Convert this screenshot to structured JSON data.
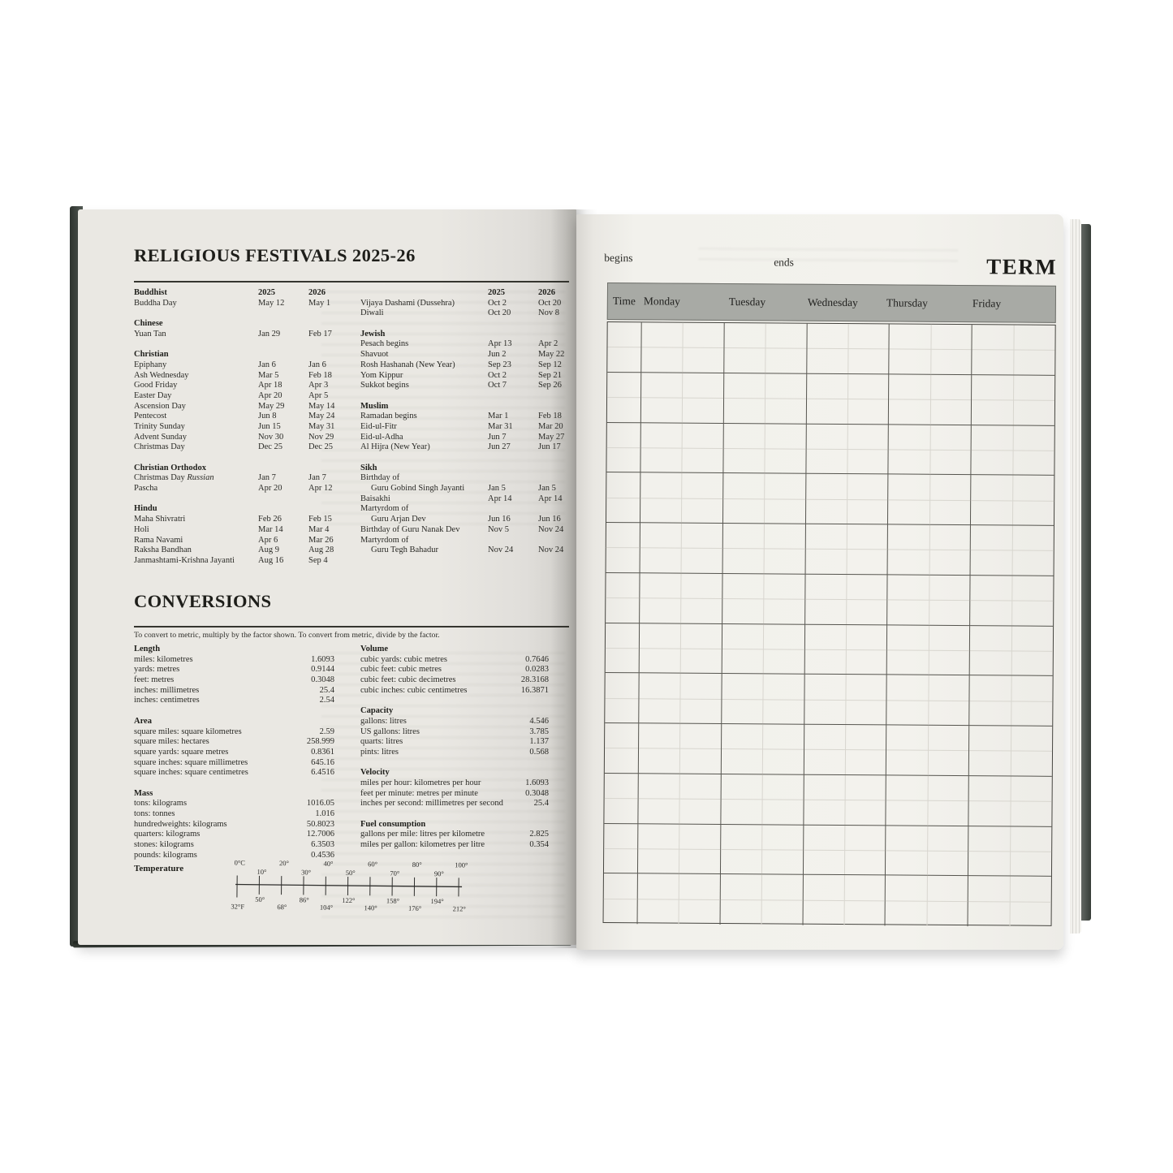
{
  "left_page": {
    "title": "RELIGIOUS FESTIVALS 2025-26",
    "festivals": {
      "left_rows": [
        {
          "type": "head",
          "name": "Buddhist",
          "d1": "2025",
          "d2": "2026"
        },
        {
          "type": "row",
          "name": "Buddha Day",
          "d1": "May 12",
          "d2": "May 1"
        },
        {
          "type": "gap"
        },
        {
          "type": "head",
          "name": "Chinese"
        },
        {
          "type": "row",
          "name": "Yuan Tan",
          "d1": "Jan 29",
          "d2": "Feb 17"
        },
        {
          "type": "gap"
        },
        {
          "type": "head",
          "name": "Christian"
        },
        {
          "type": "row",
          "name": "Epiphany",
          "d1": "Jan 6",
          "d2": "Jan 6"
        },
        {
          "type": "row",
          "name": "Ash Wednesday",
          "d1": "Mar 5",
          "d2": "Feb 18"
        },
        {
          "type": "row",
          "name": "Good Friday",
          "d1": "Apr 18",
          "d2": "Apr 3"
        },
        {
          "type": "row",
          "name": "Easter Day",
          "d1": "Apr 20",
          "d2": "Apr 5"
        },
        {
          "type": "row",
          "name": "Ascension Day",
          "d1": "May 29",
          "d2": "May 14"
        },
        {
          "type": "row",
          "name": "Pentecost",
          "d1": "Jun 8",
          "d2": "May 24"
        },
        {
          "type": "row",
          "name": "Trinity Sunday",
          "d1": "Jun 15",
          "d2": "May 31"
        },
        {
          "type": "row",
          "name": "Advent Sunday",
          "d1": "Nov 30",
          "d2": "Nov 29"
        },
        {
          "type": "row",
          "name": "Christmas Day",
          "d1": "Dec 25",
          "d2": "Dec 25"
        },
        {
          "type": "gap"
        },
        {
          "type": "head",
          "name": "Christian Orthodox"
        },
        {
          "type": "row",
          "name": "Christmas Day ",
          "name_italic": "Russian",
          "d1": "Jan 7",
          "d2": "Jan 7"
        },
        {
          "type": "row",
          "name": "Pascha",
          "d1": "Apr 20",
          "d2": "Apr 12"
        },
        {
          "type": "gap"
        },
        {
          "type": "head",
          "name": "Hindu"
        },
        {
          "type": "row",
          "name": "Maha Shivratri",
          "d1": "Feb 26",
          "d2": "Feb 15"
        },
        {
          "type": "row",
          "name": "Holi",
          "d1": "Mar 14",
          "d2": "Mar 4"
        },
        {
          "type": "row",
          "name": "Rama Navami",
          "d1": "Apr 6",
          "d2": "Mar 26"
        },
        {
          "type": "row",
          "name": "Raksha Bandhan",
          "d1": "Aug 9",
          "d2": "Aug 28"
        },
        {
          "type": "row",
          "name": "Janmashtami-Krishna Jayanti",
          "d1": "Aug 16",
          "d2": "Sep 4"
        }
      ],
      "right_rows": [
        {
          "type": "head",
          "name": "",
          "d1": "2025",
          "d2": "2026"
        },
        {
          "type": "row",
          "name": "Vijaya Dashami (Dussehra)",
          "d1": "Oct 2",
          "d2": "Oct 20"
        },
        {
          "type": "row",
          "name": "Diwali",
          "d1": "Oct 20",
          "d2": "Nov 8"
        },
        {
          "type": "gap"
        },
        {
          "type": "head",
          "name": "Jewish"
        },
        {
          "type": "row",
          "name": "Pesach begins",
          "d1": "Apr 13",
          "d2": "Apr 2"
        },
        {
          "type": "row",
          "name": "Shavuot",
          "d1": "Jun 2",
          "d2": "May 22"
        },
        {
          "type": "row",
          "name": "Rosh Hashanah (New Year)",
          "d1": "Sep 23",
          "d2": "Sep 12"
        },
        {
          "type": "row",
          "name": "Yom Kippur",
          "d1": "Oct 2",
          "d2": "Sep 21"
        },
        {
          "type": "row",
          "name": "Sukkot begins",
          "d1": "Oct 7",
          "d2": "Sep 26"
        },
        {
          "type": "gap"
        },
        {
          "type": "head",
          "name": "Muslim"
        },
        {
          "type": "row",
          "name": "Ramadan begins",
          "d1": "Mar 1",
          "d2": "Feb 18"
        },
        {
          "type": "row",
          "name": "Eid-ul-Fitr",
          "d1": "Mar 31",
          "d2": "Mar 20"
        },
        {
          "type": "row",
          "name": "Eid-ul-Adha",
          "d1": "Jun 7",
          "d2": "May 27"
        },
        {
          "type": "row",
          "name": "Al Hijra (New Year)",
          "d1": "Jun 27",
          "d2": "Jun 17"
        },
        {
          "type": "gap"
        },
        {
          "type": "head",
          "name": "Sikh"
        },
        {
          "type": "row",
          "name": "Birthday of"
        },
        {
          "type": "cont",
          "name": "Guru Gobind Singh Jayanti",
          "d1": "Jan 5",
          "d2": "Jan 5"
        },
        {
          "type": "row",
          "name": "Baisakhi",
          "d1": "Apr 14",
          "d2": "Apr 14"
        },
        {
          "type": "row",
          "name": "Martyrdom of"
        },
        {
          "type": "cont",
          "name": "Guru Arjan Dev",
          "d1": "Jun 16",
          "d2": "Jun 16"
        },
        {
          "type": "row",
          "name": "Birthday of Guru Nanak Dev",
          "d1": "Nov 5",
          "d2": "Nov 24"
        },
        {
          "type": "row",
          "name": "Martyrdom of"
        },
        {
          "type": "cont",
          "name": "Guru Tegh Bahadur",
          "d1": "Nov 24",
          "d2": "Nov 24"
        }
      ]
    },
    "conversions": {
      "title": "CONVERSIONS",
      "intro": "To convert to metric, multiply by the factor shown. To convert from metric, divide by the factor.",
      "left_rows": [
        {
          "type": "head",
          "label": "Length"
        },
        {
          "type": "row",
          "label": "miles: kilometres",
          "value": "1.6093"
        },
        {
          "type": "row",
          "label": "yards: metres",
          "value": "0.9144"
        },
        {
          "type": "row",
          "label": "feet: metres",
          "value": "0.3048"
        },
        {
          "type": "row",
          "label": "inches: millimetres",
          "value": "25.4"
        },
        {
          "type": "row",
          "label": "inches: centimetres",
          "value": "2.54"
        },
        {
          "type": "gap"
        },
        {
          "type": "head",
          "label": "Area"
        },
        {
          "type": "row",
          "label": "square miles: square kilometres",
          "value": "2.59"
        },
        {
          "type": "row",
          "label": "square miles: hectares",
          "value": "258.999"
        },
        {
          "type": "row",
          "label": "square yards: square metres",
          "value": "0.8361"
        },
        {
          "type": "row",
          "label": "square inches: square millimetres",
          "value": "645.16"
        },
        {
          "type": "row",
          "label": "square inches: square centimetres",
          "value": "6.4516"
        },
        {
          "type": "gap"
        },
        {
          "type": "head",
          "label": "Mass"
        },
        {
          "type": "row",
          "label": "tons: kilograms",
          "value": "1016.05"
        },
        {
          "type": "row",
          "label": "tons: tonnes",
          "value": "1.016"
        },
        {
          "type": "row",
          "label": "hundredweights: kilograms",
          "value": "50.8023"
        },
        {
          "type": "row",
          "label": "quarters: kilograms",
          "value": "12.7006"
        },
        {
          "type": "row",
          "label": "stones: kilograms",
          "value": "6.3503"
        },
        {
          "type": "row",
          "label": "pounds: kilograms",
          "value": "0.4536"
        }
      ],
      "right_rows": [
        {
          "type": "head",
          "label": "Volume"
        },
        {
          "type": "row",
          "label": "cubic yards: cubic metres",
          "value": "0.7646"
        },
        {
          "type": "row",
          "label": "cubic feet: cubic metres",
          "value": "0.0283"
        },
        {
          "type": "row",
          "label": "cubic feet: cubic decimetres",
          "value": "28.3168"
        },
        {
          "type": "row",
          "label": "cubic inches: cubic centimetres",
          "value": "16.3871"
        },
        {
          "type": "gap"
        },
        {
          "type": "head",
          "label": "Capacity"
        },
        {
          "type": "row",
          "label": "gallons: litres",
          "value": "4.546"
        },
        {
          "type": "row",
          "label": "US gallons: litres",
          "value": "3.785"
        },
        {
          "type": "row",
          "label": "quarts: litres",
          "value": "1.137"
        },
        {
          "type": "row",
          "label": "pints: litres",
          "value": "0.568"
        },
        {
          "type": "gap"
        },
        {
          "type": "head",
          "label": "Velocity"
        },
        {
          "type": "row",
          "label": "miles per hour: kilometres per hour",
          "value": "1.6093"
        },
        {
          "type": "row",
          "label": "feet per minute: metres per minute",
          "value": "0.3048"
        },
        {
          "type": "row",
          "label": "inches per second: millimetres per second",
          "value": "25.4"
        },
        {
          "type": "gap"
        },
        {
          "type": "head",
          "label": "Fuel consumption"
        },
        {
          "type": "row",
          "label": "gallons per mile: litres per kilometre",
          "value": "2.825"
        },
        {
          "type": "row",
          "label": "miles per gallon: kilometres per litre",
          "value": "0.354"
        }
      ],
      "temperature": {
        "title": "Temperature",
        "celsius": [
          "0°C",
          "10°",
          "20°",
          "30°",
          "40°",
          "50°",
          "60°",
          "70°",
          "80°",
          "90°",
          "100°"
        ],
        "fahrenheit": [
          "32°F",
          "50°",
          "68°",
          "86°",
          "104°",
          "122°",
          "140°",
          "158°",
          "176°",
          "194°",
          "212°"
        ]
      }
    }
  },
  "right_page": {
    "begins_label": "begins",
    "ends_label": "ends",
    "term_label": "TERM",
    "timetable": {
      "columns": [
        "Time",
        "Monday",
        "Tuesday",
        "Wednesday",
        "Thursday",
        "Friday"
      ],
      "rows": 12
    }
  },
  "colors": {
    "header_bar": "#a8aaa5",
    "grid_line": "#56554f",
    "grid_faint": "#d8d6cf",
    "cover": "#49504a",
    "page_left": "#eae8e3",
    "page_right": "#f2f1ec"
  }
}
